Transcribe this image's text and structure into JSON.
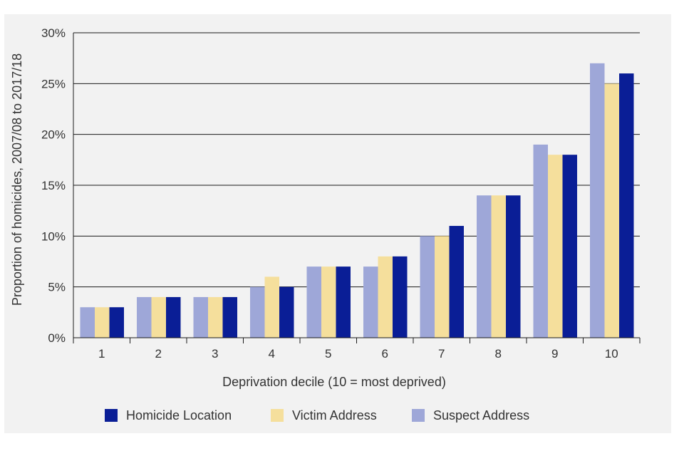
{
  "chart_data": {
    "type": "bar",
    "categories": [
      "1",
      "2",
      "3",
      "4",
      "5",
      "6",
      "7",
      "8",
      "9",
      "10"
    ],
    "series": [
      {
        "name": "Suspect Address",
        "color": "#9ea7d8",
        "values": [
          3,
          4,
          4,
          5,
          7,
          7,
          10,
          14,
          19,
          27
        ]
      },
      {
        "name": "Victim Address",
        "color": "#f5df9c",
        "values": [
          3,
          4,
          4,
          6,
          7,
          8,
          10,
          14,
          18,
          25
        ]
      },
      {
        "name": "Homicide Location",
        "color": "#0a1e96",
        "values": [
          3,
          4,
          4,
          5,
          7,
          8,
          11,
          14,
          18,
          26
        ]
      }
    ],
    "legend_order": [
      "Homicide Location",
      "Victim Address",
      "Suspect Address"
    ],
    "xlabel": "Deprivation decile (10 = most deprived)",
    "ylabel": "Proportion of homicides, 2007/08 to 2017/18",
    "ylim": [
      0,
      30
    ],
    "yticks": [
      "0%",
      "5%",
      "10%",
      "15%",
      "20%",
      "25%",
      "30%"
    ],
    "grid": true,
    "legend_position": "bottom"
  }
}
